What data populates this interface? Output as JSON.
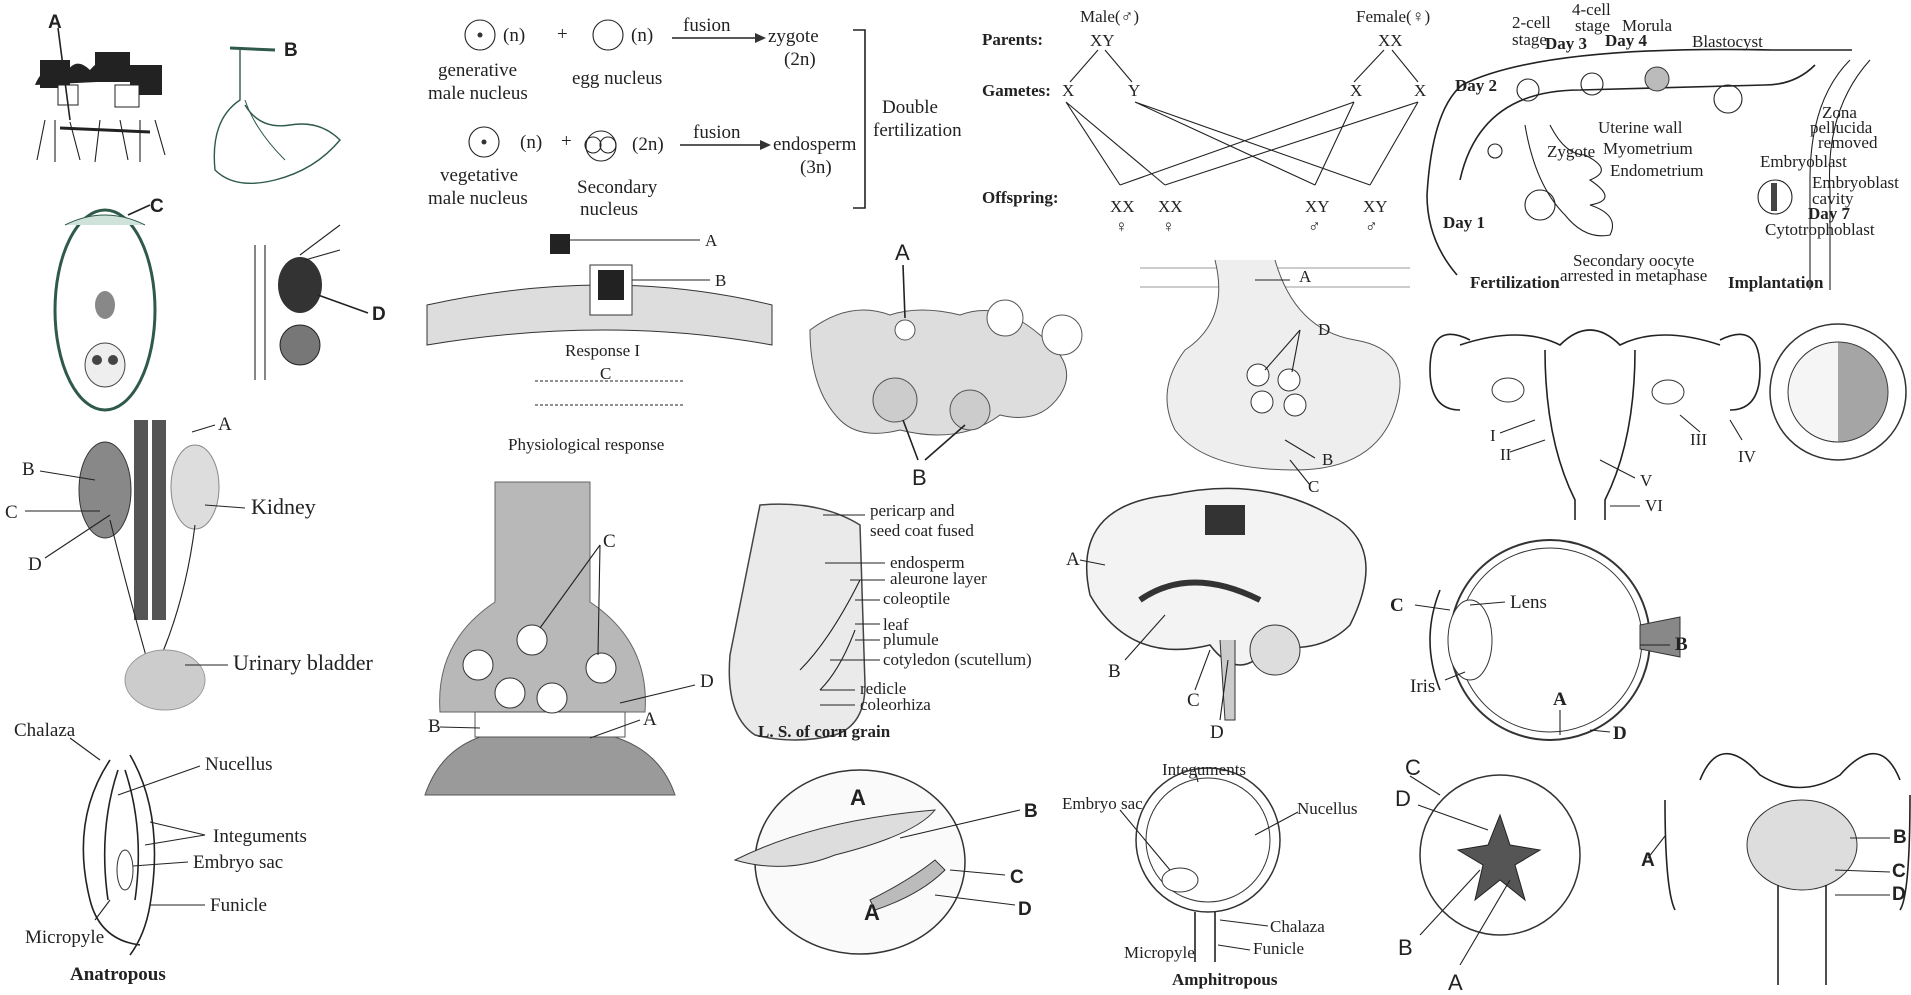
{
  "p_moss": {
    "A": "A",
    "B": "B",
    "C": "C",
    "D": "D"
  },
  "p_fert": {
    "n1": "(n)",
    "plus1": "+",
    "n2": "(n)",
    "fusion1": "fusion",
    "zygote": "zygote",
    "zygote_ploidy": "(2n)",
    "gen1": "generative",
    "gen2": "male nucleus",
    "egg": "egg nucleus",
    "n3": "(n)",
    "plus2": "+",
    "n4": "(2n)",
    "fusion2": "fusion",
    "endo": "endosperm",
    "endo_ploidy": "(3n)",
    "veg1": "vegetative",
    "veg2": "male nucleus",
    "sec1": "Secondary",
    "sec2": "nucleus",
    "df1": "Double",
    "df2": "fertilization"
  },
  "p_sex": {
    "male": "Male(♂)",
    "female": "Female(♀)",
    "parents": "Parents:",
    "xy": "XY",
    "xx": "XX",
    "gametes": "Gametes:",
    "gx1": "X",
    "gy": "Y",
    "gx2": "X",
    "gx3": "X",
    "offspring": "Offspring:",
    "o1": "XX",
    "o2": "XX",
    "o3": "XY",
    "o4": "XY",
    "s1": "♀",
    "s2": "♀",
    "s3": "♂",
    "s4": "♂"
  },
  "p_embryo": {
    "cell2": "2-cell",
    "stage2": "stage",
    "cell4": "4-cell",
    "stage4": "stage",
    "day3": "Day 3",
    "day4": "Day 4",
    "morula": "Morula",
    "blastocyst": "Blastocyst",
    "day2": "Day 2",
    "zona1": "Zona",
    "zona2": "pellucida",
    "zona3": "removed",
    "uterine": "Uterine wall",
    "myo": "Myometrium",
    "endo": "Endometrium",
    "zygote": "Zygote",
    "day1": "Day 1",
    "embryoblast": "Embryoblast",
    "cavity1": "Embryoblast",
    "cavity2": "cavity",
    "day7": "Day 7",
    "cyto": "Cytotrophoblast",
    "oocyte1": "Secondary oocyte",
    "oocyte2": "arrested in metaphase",
    "fert": "Fertilization",
    "impl": "Implantation"
  },
  "p_kidney": {
    "A": "A",
    "B": "B",
    "C": "C",
    "D": "D",
    "kidney": "Kidney",
    "bladder": "Urinary bladder"
  },
  "p_receptor": {
    "A": "A",
    "B": "B",
    "resp": "Response I",
    "C": "C",
    "phys": "Physiological response"
  },
  "p_ovary": {
    "A": "A",
    "B": "B"
  },
  "p_synapse1": {
    "A": "A",
    "B": "B",
    "C": "C",
    "D": "D"
  },
  "p_uterus": {
    "I": "I",
    "II": "II",
    "III": "III",
    "IV": "IV",
    "V": "V",
    "VI": "VI"
  },
  "p_synapse2": {
    "C": "C",
    "D": "D",
    "A": "A",
    "B": "B"
  },
  "p_corn": {
    "l1": "pericarp and",
    "l2": "seed coat fused",
    "l3": "endosperm",
    "l4": "aleurone layer",
    "l5": "coleoptile",
    "l6": "leaf",
    "l7": "plumule",
    "l8": "cotyledon (scutellum)",
    "l9": "redicle",
    "l10": "coleorhiza",
    "caption": "L. S. of corn grain"
  },
  "p_brain": {
    "A": "A",
    "B": "B",
    "C": "C",
    "D": "D"
  },
  "p_eye": {
    "C": "C",
    "lens": "Lens",
    "iris": "Iris",
    "B": "B",
    "A": "A",
    "D": "D"
  },
  "p_anatropous": {
    "chalaza": "Chalaza",
    "nucellus": "Nucellus",
    "integuments": "Integuments",
    "sac": "Embryo sac",
    "funicle": "Funicle",
    "micropyle": "Micropyle",
    "caption": "Anatropous"
  },
  "p_seed": {
    "A1": "A",
    "A2": "A",
    "B": "B",
    "C": "C",
    "D": "D"
  },
  "p_amphi": {
    "integuments": "Integuments",
    "nucellus": "Nucellus",
    "sac": "Embryo sac",
    "chalaza": "Chalaza",
    "micropyle": "Micropyle",
    "funicle": "Funicle",
    "caption": "Amphitropous"
  },
  "p_fruit": {
    "C": "C",
    "D": "D",
    "B": "B",
    "A": "A"
  },
  "p_male": {
    "A": "A",
    "B": "B",
    "C": "C",
    "D": "D"
  }
}
